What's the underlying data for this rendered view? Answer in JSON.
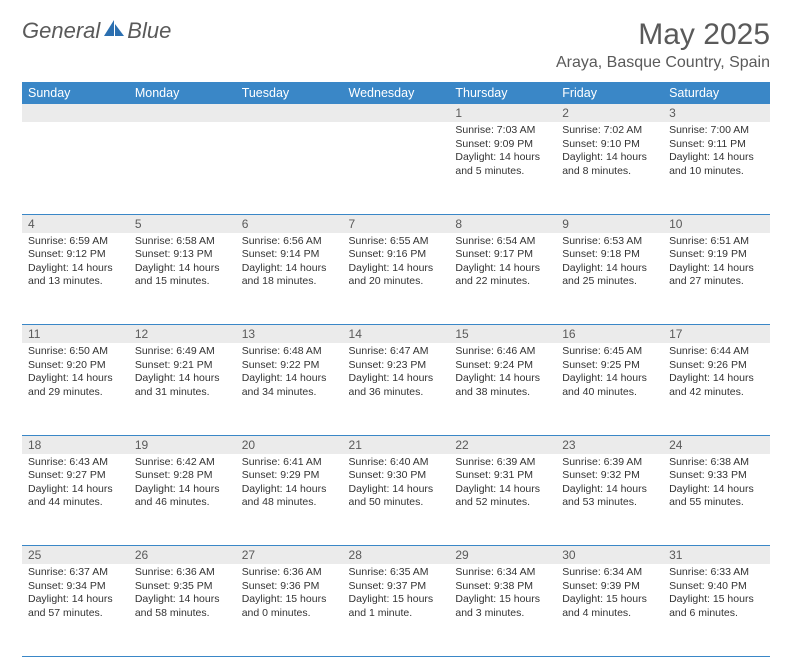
{
  "logo": {
    "text1": "General",
    "text2": "Blue",
    "text_color": "#5a5a5a",
    "accent_color": "#2b6fb0"
  },
  "title": "May 2025",
  "location": "Araya, Basque Country, Spain",
  "header_bg": "#3a87c7",
  "header_fg": "#ffffff",
  "daynum_bg": "#ebebeb",
  "border_color": "#3a87c7",
  "days": [
    "Sunday",
    "Monday",
    "Tuesday",
    "Wednesday",
    "Thursday",
    "Friday",
    "Saturday"
  ],
  "weeks": [
    [
      null,
      null,
      null,
      null,
      {
        "n": "1",
        "sr": "7:03 AM",
        "ss": "9:09 PM",
        "dl": "14 hours and 5 minutes."
      },
      {
        "n": "2",
        "sr": "7:02 AM",
        "ss": "9:10 PM",
        "dl": "14 hours and 8 minutes."
      },
      {
        "n": "3",
        "sr": "7:00 AM",
        "ss": "9:11 PM",
        "dl": "14 hours and 10 minutes."
      }
    ],
    [
      {
        "n": "4",
        "sr": "6:59 AM",
        "ss": "9:12 PM",
        "dl": "14 hours and 13 minutes."
      },
      {
        "n": "5",
        "sr": "6:58 AM",
        "ss": "9:13 PM",
        "dl": "14 hours and 15 minutes."
      },
      {
        "n": "6",
        "sr": "6:56 AM",
        "ss": "9:14 PM",
        "dl": "14 hours and 18 minutes."
      },
      {
        "n": "7",
        "sr": "6:55 AM",
        "ss": "9:16 PM",
        "dl": "14 hours and 20 minutes."
      },
      {
        "n": "8",
        "sr": "6:54 AM",
        "ss": "9:17 PM",
        "dl": "14 hours and 22 minutes."
      },
      {
        "n": "9",
        "sr": "6:53 AM",
        "ss": "9:18 PM",
        "dl": "14 hours and 25 minutes."
      },
      {
        "n": "10",
        "sr": "6:51 AM",
        "ss": "9:19 PM",
        "dl": "14 hours and 27 minutes."
      }
    ],
    [
      {
        "n": "11",
        "sr": "6:50 AM",
        "ss": "9:20 PM",
        "dl": "14 hours and 29 minutes."
      },
      {
        "n": "12",
        "sr": "6:49 AM",
        "ss": "9:21 PM",
        "dl": "14 hours and 31 minutes."
      },
      {
        "n": "13",
        "sr": "6:48 AM",
        "ss": "9:22 PM",
        "dl": "14 hours and 34 minutes."
      },
      {
        "n": "14",
        "sr": "6:47 AM",
        "ss": "9:23 PM",
        "dl": "14 hours and 36 minutes."
      },
      {
        "n": "15",
        "sr": "6:46 AM",
        "ss": "9:24 PM",
        "dl": "14 hours and 38 minutes."
      },
      {
        "n": "16",
        "sr": "6:45 AM",
        "ss": "9:25 PM",
        "dl": "14 hours and 40 minutes."
      },
      {
        "n": "17",
        "sr": "6:44 AM",
        "ss": "9:26 PM",
        "dl": "14 hours and 42 minutes."
      }
    ],
    [
      {
        "n": "18",
        "sr": "6:43 AM",
        "ss": "9:27 PM",
        "dl": "14 hours and 44 minutes."
      },
      {
        "n": "19",
        "sr": "6:42 AM",
        "ss": "9:28 PM",
        "dl": "14 hours and 46 minutes."
      },
      {
        "n": "20",
        "sr": "6:41 AM",
        "ss": "9:29 PM",
        "dl": "14 hours and 48 minutes."
      },
      {
        "n": "21",
        "sr": "6:40 AM",
        "ss": "9:30 PM",
        "dl": "14 hours and 50 minutes."
      },
      {
        "n": "22",
        "sr": "6:39 AM",
        "ss": "9:31 PM",
        "dl": "14 hours and 52 minutes."
      },
      {
        "n": "23",
        "sr": "6:39 AM",
        "ss": "9:32 PM",
        "dl": "14 hours and 53 minutes."
      },
      {
        "n": "24",
        "sr": "6:38 AM",
        "ss": "9:33 PM",
        "dl": "14 hours and 55 minutes."
      }
    ],
    [
      {
        "n": "25",
        "sr": "6:37 AM",
        "ss": "9:34 PM",
        "dl": "14 hours and 57 minutes."
      },
      {
        "n": "26",
        "sr": "6:36 AM",
        "ss": "9:35 PM",
        "dl": "14 hours and 58 minutes."
      },
      {
        "n": "27",
        "sr": "6:36 AM",
        "ss": "9:36 PM",
        "dl": "15 hours and 0 minutes."
      },
      {
        "n": "28",
        "sr": "6:35 AM",
        "ss": "9:37 PM",
        "dl": "15 hours and 1 minute."
      },
      {
        "n": "29",
        "sr": "6:34 AM",
        "ss": "9:38 PM",
        "dl": "15 hours and 3 minutes."
      },
      {
        "n": "30",
        "sr": "6:34 AM",
        "ss": "9:39 PM",
        "dl": "15 hours and 4 minutes."
      },
      {
        "n": "31",
        "sr": "6:33 AM",
        "ss": "9:40 PM",
        "dl": "15 hours and 6 minutes."
      }
    ]
  ],
  "labels": {
    "sunrise": "Sunrise:",
    "sunset": "Sunset:",
    "daylight": "Daylight:"
  }
}
